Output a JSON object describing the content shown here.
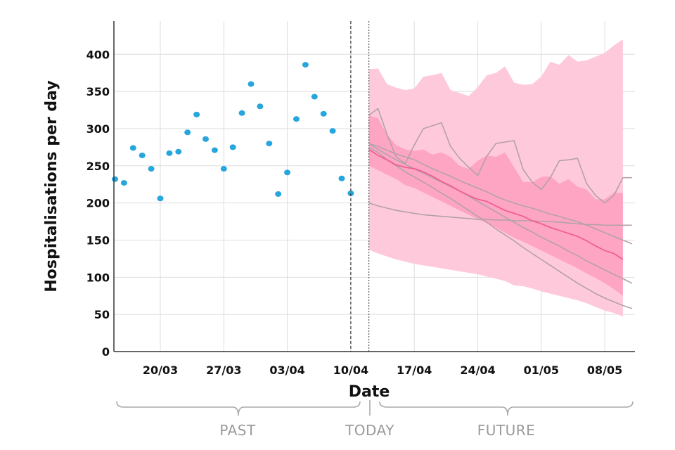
{
  "chart_data": {
    "type": "line",
    "xlabel": "Date",
    "ylabel": "Hospitalisations per day",
    "ylim": [
      0,
      440
    ],
    "y_ticks": [
      0,
      50,
      100,
      150,
      200,
      250,
      300,
      350,
      400
    ],
    "x_ticks": [
      {
        "label": "20/03",
        "day": 5
      },
      {
        "label": "27/03",
        "day": 12
      },
      {
        "label": "03/04",
        "day": 19
      },
      {
        "label": "10/04",
        "day": 26
      },
      {
        "label": "17/04",
        "day": 33
      },
      {
        "label": "24/04",
        "day": 40
      },
      {
        "label": "01/05",
        "day": 47
      },
      {
        "label": "08/05",
        "day": 54
      }
    ],
    "x_range_days": [
      0,
      57
    ],
    "grid": true,
    "observed": {
      "color": "#27a6de",
      "points": [
        [
          0,
          232
        ],
        [
          1,
          227
        ],
        [
          2,
          274
        ],
        [
          3,
          264
        ],
        [
          4,
          246
        ],
        [
          5,
          206
        ],
        [
          6,
          267
        ],
        [
          7,
          269
        ],
        [
          8,
          295
        ],
        [
          9,
          319
        ],
        [
          10,
          286
        ],
        [
          11,
          271
        ],
        [
          12,
          246
        ],
        [
          13,
          275
        ],
        [
          14,
          321
        ],
        [
          15,
          360
        ],
        [
          16,
          330
        ],
        [
          17,
          280
        ],
        [
          18,
          212
        ],
        [
          19,
          241
        ],
        [
          20,
          313
        ],
        [
          21,
          386
        ],
        [
          22,
          343
        ],
        [
          23,
          320
        ],
        [
          24,
          297
        ],
        [
          25,
          233
        ],
        [
          26,
          213
        ]
      ]
    },
    "forecast": {
      "start_day": 28,
      "outer_color": "#ffc9dc",
      "inner_color": "#ffa5c4",
      "median_color": "#ee5f93",
      "traj_color": "#b3a1a9",
      "outer_upper": [
        380,
        381,
        360,
        355,
        352,
        354,
        370,
        372,
        375,
        352,
        348,
        344,
        356,
        372,
        375,
        384,
        362,
        359,
        360,
        370,
        390,
        386,
        399,
        390,
        392,
        397,
        402,
        412,
        420
      ],
      "outer_lower": [
        137,
        132,
        128,
        124,
        121,
        118,
        116,
        114,
        112,
        110,
        108,
        106,
        104,
        101,
        98,
        95,
        89,
        88,
        85,
        81,
        78,
        75,
        72,
        69,
        65,
        60,
        55,
        52,
        47
      ],
      "inner_upper": [
        318,
        314,
        292,
        278,
        272,
        270,
        272,
        265,
        268,
        262,
        250,
        246,
        257,
        264,
        262,
        268,
        248,
        228,
        228,
        235,
        236,
        226,
        232,
        222,
        218,
        205,
        205,
        214,
        213
      ],
      "inner_lower": [
        250,
        244,
        238,
        232,
        224,
        220,
        214,
        208,
        202,
        196,
        190,
        184,
        178,
        173,
        167,
        160,
        153,
        148,
        142,
        136,
        130,
        124,
        118,
        112,
        105,
        99,
        92,
        84,
        75
      ],
      "median": [
        272,
        264,
        258,
        251,
        248,
        246,
        242,
        236,
        229,
        223,
        216,
        210,
        205,
        202,
        196,
        190,
        186,
        182,
        176,
        172,
        167,
        163,
        159,
        155,
        149,
        142,
        136,
        132,
        124
      ],
      "trajectories": [
        [
          318,
          327,
          292,
          262,
          253,
          278,
          300,
          304,
          308,
          276,
          260,
          248,
          237,
          263,
          280,
          282,
          284,
          245,
          228,
          218,
          234,
          257,
          258,
          260,
          226,
          210,
          200,
          210,
          234,
          234
        ],
        [
          200,
          196,
          193,
          190,
          188,
          186,
          184,
          183,
          182,
          181,
          180,
          179,
          178,
          178,
          177,
          177,
          176,
          176,
          176,
          175,
          175,
          174,
          173,
          172,
          171,
          171,
          170,
          170,
          170,
          170
        ],
        [
          280,
          276,
          271,
          266,
          262,
          258,
          252,
          246,
          241,
          236,
          230,
          225,
          220,
          215,
          209,
          204,
          200,
          196,
          193,
          189,
          185,
          182,
          178,
          175,
          170,
          165,
          160,
          155,
          150,
          145
        ],
        [
          275,
          268,
          258,
          250,
          242,
          235,
          228,
          221,
          213,
          206,
          198,
          190,
          182,
          174,
          165,
          157,
          149,
          140,
          132,
          124,
          116,
          108,
          100,
          92,
          85,
          78,
          72,
          67,
          62,
          58
        ],
        [
          280,
          272,
          265,
          258,
          252,
          246,
          240,
          234,
          228,
          222,
          216,
          209,
          202,
          195,
          188,
          181,
          174,
          167,
          161,
          154,
          148,
          142,
          135,
          129,
          122,
          116,
          110,
          104,
          98,
          92
        ]
      ]
    },
    "today_day": 28,
    "last_observed_day": 26
  },
  "periods": {
    "past": "PAST",
    "today": "TODAY",
    "future": "FUTURE"
  }
}
